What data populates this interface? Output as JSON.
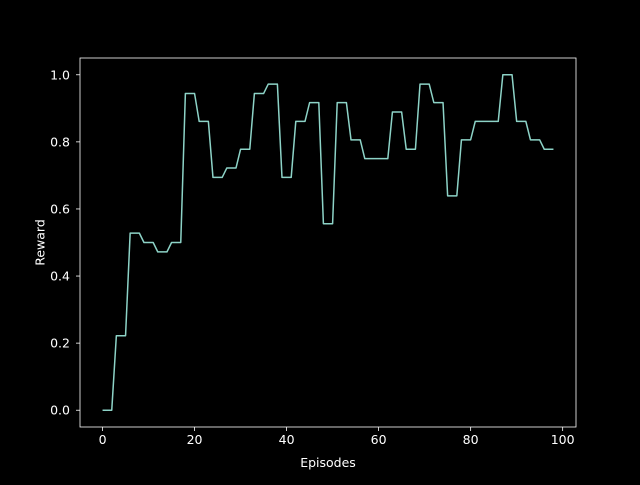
{
  "chart_data": {
    "type": "line",
    "title": "",
    "xlabel": "Episodes",
    "ylabel": "Reward",
    "xlim": [
      -4.9,
      102.9
    ],
    "ylim": [
      -0.05,
      1.05
    ],
    "x_ticks": [
      0,
      20,
      40,
      60,
      80,
      100
    ],
    "x_tick_labels": [
      "0",
      "20",
      "40",
      "60",
      "80",
      "100"
    ],
    "y_ticks": [
      0.0,
      0.2,
      0.4,
      0.6,
      0.8,
      1.0
    ],
    "y_tick_labels": [
      "0.0",
      "0.2",
      "0.4",
      "0.6",
      "0.8",
      "1.0"
    ],
    "grid": false,
    "legend": "none",
    "colors": {
      "background": "#000000",
      "axes": "#ffffff",
      "text": "#ffffff",
      "line": "#8dd3c7"
    },
    "series": [
      {
        "x": [
          0,
          1,
          2,
          3,
          4,
          5,
          6,
          7,
          8,
          9,
          10,
          11,
          12,
          13,
          14,
          15,
          16,
          17,
          18,
          19,
          20,
          21,
          22,
          23,
          24,
          25,
          26,
          27,
          28,
          29,
          30,
          31,
          32,
          33,
          34,
          35,
          36,
          37,
          38,
          39,
          40,
          41,
          42,
          43,
          44,
          45,
          46,
          47,
          48,
          49,
          50,
          51,
          52,
          53,
          54,
          55,
          56,
          57,
          58,
          59,
          60,
          61,
          62,
          63,
          64,
          65,
          66,
          67,
          68,
          69,
          70,
          71,
          72,
          73,
          74,
          75,
          76,
          77,
          78,
          79,
          80,
          81,
          82,
          83,
          84,
          85,
          86,
          87,
          88,
          89,
          90,
          91,
          92,
          93,
          94,
          95,
          96,
          97,
          98
        ],
        "values": [
          0.0,
          0.0,
          0.0,
          0.222,
          0.222,
          0.222,
          0.528,
          0.528,
          0.528,
          0.5,
          0.5,
          0.5,
          0.472,
          0.472,
          0.472,
          0.5,
          0.5,
          0.5,
          0.944,
          0.944,
          0.944,
          0.861,
          0.861,
          0.861,
          0.694,
          0.694,
          0.694,
          0.722,
          0.722,
          0.722,
          0.778,
          0.778,
          0.778,
          0.944,
          0.944,
          0.944,
          0.972,
          0.972,
          0.972,
          0.694,
          0.694,
          0.694,
          0.861,
          0.861,
          0.861,
          0.917,
          0.917,
          0.917,
          0.556,
          0.556,
          0.556,
          0.917,
          0.917,
          0.917,
          0.806,
          0.806,
          0.806,
          0.75,
          0.75,
          0.75,
          0.75,
          0.75,
          0.75,
          0.889,
          0.889,
          0.889,
          0.778,
          0.778,
          0.778,
          0.972,
          0.972,
          0.972,
          0.917,
          0.917,
          0.917,
          0.639,
          0.639,
          0.639,
          0.806,
          0.806,
          0.806,
          0.861,
          0.861,
          0.861,
          0.861,
          0.861,
          0.861,
          1.0,
          1.0,
          1.0,
          0.861,
          0.861,
          0.861,
          0.806,
          0.806,
          0.806,
          0.778,
          0.778,
          0.778
        ]
      }
    ]
  }
}
